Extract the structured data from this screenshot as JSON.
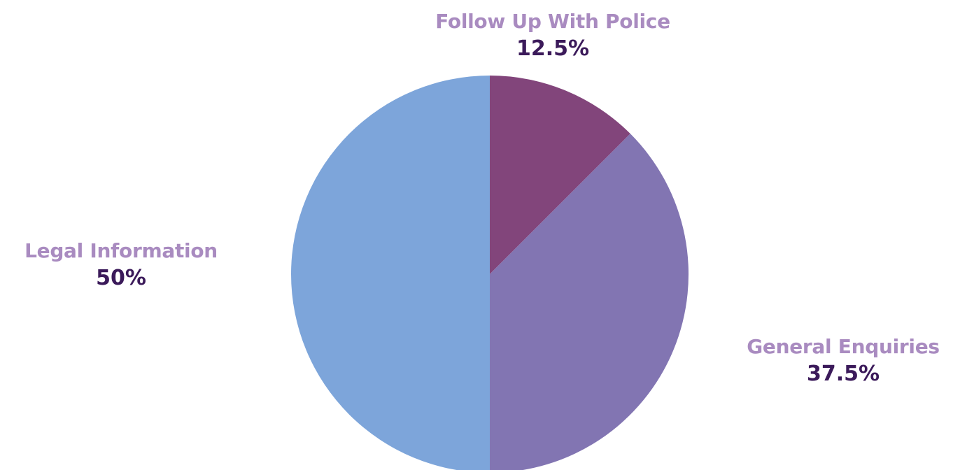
{
  "chart_data": {
    "type": "pie",
    "slices": [
      {
        "label": "Follow Up With Police",
        "value": 12.5,
        "value_text": "12.5%",
        "color": "#82457b"
      },
      {
        "label": "General Enquiries",
        "value": 37.5,
        "value_text": "37.5%",
        "color": "#8275b2"
      },
      {
        "label": "Legal Information",
        "value": 50,
        "value_text": "50%",
        "color": "#7da5da"
      }
    ],
    "start_angle": "12 o'clock",
    "direction": "clockwise",
    "label_name_color": "#a98bc0",
    "label_value_color": "#3b1a5a"
  }
}
